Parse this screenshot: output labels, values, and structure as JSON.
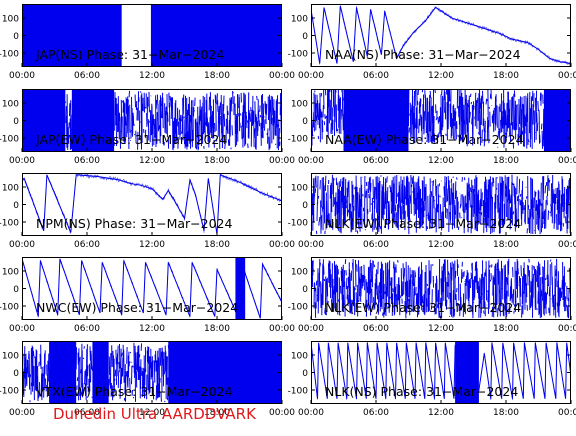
{
  "caption": "Dunedin Ultra AARDDVARK",
  "trace_color": "#0000ee",
  "caption_color": "#e0191b",
  "x_ticks": [
    "00:00",
    "06:00",
    "12:00",
    "18:00",
    "00:00"
  ],
  "y_ticks": [
    100,
    0,
    -100
  ],
  "chart_data": [
    {
      "type": "line",
      "title": "JAP(NS) Phase: 31−Mar−2024",
      "ylim": [
        -180,
        180
      ],
      "xlim": [
        0,
        24
      ],
      "style": "dense",
      "noise": 0,
      "gaps": [
        [
          9.2,
          11.9
        ]
      ],
      "sparse": [],
      "series": [
        {
          "x": [
            0,
            6,
            12,
            18,
            24
          ],
          "values": [
            0,
            0,
            0,
            0,
            0
          ]
        }
      ]
    },
    {
      "type": "line",
      "title": "NAA(NS) Phase: 31−Mar−2024",
      "ylim": [
        -180,
        180
      ],
      "xlim": [
        0,
        24
      ],
      "style": "wrap",
      "noise": 10,
      "gaps": [],
      "sparse": [],
      "series": [
        {
          "x": [
            0,
            0.8,
            1.2,
            2.4,
            2.7,
            3.9,
            4.2,
            5.2,
            5.5,
            6.5,
            6.8,
            7.9,
            8.5,
            9.5,
            10.5,
            11.5,
            13.0,
            13.5,
            14.0,
            14.5,
            15.0,
            16.0,
            17.5,
            18.5,
            20.0,
            21.0,
            22.0,
            23.0,
            24.0
          ],
          "values": [
            150,
            -160,
            160,
            -160,
            170,
            -150,
            160,
            -120,
            150,
            -110,
            140,
            -130,
            -60,
            20,
            80,
            160,
            100,
            90,
            80,
            70,
            60,
            40,
            10,
            -20,
            -40,
            -80,
            -130,
            -150,
            -160
          ]
        }
      ]
    },
    {
      "type": "line",
      "title": "JAP(EW) Phase: 31−Mar−2024",
      "ylim": [
        -180,
        180
      ],
      "xlim": [
        0,
        24
      ],
      "style": "dense",
      "noise": 0,
      "gaps": [],
      "sparse": [
        [
          4.0,
          4.6
        ],
        [
          8.5,
          24.0
        ]
      ],
      "series": [
        {
          "x": [
            0,
            12,
            24
          ],
          "values": [
            0,
            0,
            0
          ]
        }
      ]
    },
    {
      "type": "line",
      "title": "NAA(EW) Phase: 31−Mar−2024",
      "ylim": [
        -180,
        180
      ],
      "xlim": [
        0,
        24
      ],
      "style": "dense",
      "noise": 0,
      "gaps": [],
      "sparse": [
        [
          0,
          3.0
        ],
        [
          9.0,
          21.5
        ]
      ],
      "series": [
        {
          "x": [
            0,
            3.0,
            5.0,
            7.0,
            9.0,
            21.5,
            22.5,
            24.0
          ],
          "values": [
            0,
            100,
            60,
            80,
            40,
            0,
            110,
            140
          ]
        }
      ]
    },
    {
      "type": "line",
      "title": "NPM(NS) Phase: 31−Mar−2024",
      "ylim": [
        -180,
        180
      ],
      "xlim": [
        0,
        24
      ],
      "style": "wrap",
      "noise": 12,
      "gaps": [],
      "sparse": [],
      "series": [
        {
          "x": [
            0,
            0.2,
            2.0,
            2.3,
            4.5,
            5.0,
            7.0,
            8.0,
            9.0,
            10.0,
            11.0,
            12.0,
            12.5,
            13.0,
            13.5,
            14.0,
            15.0,
            15.5,
            16.0,
            16.8,
            17.2,
            18.0,
            18.3,
            20.0,
            22.0,
            24.0
          ],
          "values": [
            140,
            150,
            -150,
            170,
            -160,
            170,
            160,
            150,
            140,
            120,
            110,
            90,
            60,
            30,
            80,
            30,
            -80,
            140,
            60,
            -150,
            150,
            -170,
            170,
            130,
            70,
            20
          ]
        }
      ]
    },
    {
      "type": "line",
      "title": "NLK(EW) Phase: 31−Mar−2024",
      "ylim": [
        -180,
        180
      ],
      "xlim": [
        0,
        24
      ],
      "style": "dense",
      "noise": 0,
      "gaps": [],
      "sparse": [
        [
          0,
          24
        ]
      ],
      "series": [
        {
          "x": [
            0,
            12,
            24
          ],
          "values": [
            0,
            0,
            0
          ]
        }
      ]
    },
    {
      "type": "line",
      "title": "NWC(EW) Phase: 31−Mar−2024",
      "ylim": [
        -180,
        180
      ],
      "xlim": [
        0,
        24
      ],
      "style": "wrap",
      "noise": 8,
      "gaps": [],
      "sparse": [
        [
          19.7,
          20.6
        ]
      ],
      "series": [
        {
          "x": [
            0,
            1.5,
            1.7,
            3.3,
            3.5,
            5.3,
            5.5,
            7.2,
            7.4,
            9.2,
            9.4,
            11.2,
            11.4,
            13.3,
            13.5,
            15.5,
            15.7,
            17.8,
            18.0,
            20.0,
            20.2,
            22.0,
            22.2,
            24.0
          ],
          "values": [
            170,
            -160,
            160,
            -150,
            170,
            -150,
            160,
            -140,
            150,
            -150,
            160,
            -140,
            150,
            -150,
            150,
            -160,
            150,
            -160,
            110,
            -170,
            160,
            -170,
            140,
            -80
          ]
        }
      ]
    },
    {
      "type": "line",
      "title": "NLK(EW) Phase: 31−Mar−2024",
      "ylim": [
        -180,
        180
      ],
      "xlim": [
        0,
        24
      ],
      "style": "dense",
      "noise": 0,
      "gaps": [],
      "sparse": [
        [
          0,
          24
        ]
      ],
      "series": [
        {
          "x": [
            0,
            12,
            24
          ],
          "values": [
            0,
            0,
            0
          ]
        }
      ]
    },
    {
      "type": "line",
      "title": "VTX(EW) Phase: 31−Mar−2024",
      "ylim": [
        -180,
        180
      ],
      "xlim": [
        0,
        24
      ],
      "style": "dense",
      "noise": 0,
      "gaps": [],
      "sparse": [
        [
          0,
          2.5
        ],
        [
          5.0,
          6.5
        ],
        [
          8.0,
          13.5
        ]
      ],
      "series": [
        {
          "x": [
            0,
            12,
            24
          ],
          "values": [
            0,
            0,
            0
          ]
        }
      ]
    },
    {
      "type": "line",
      "title": "NLK(NS) Phase: 31−Mar−2024",
      "ylim": [
        -180,
        180
      ],
      "xlim": [
        0,
        24
      ],
      "style": "wrap",
      "noise": 8,
      "gaps": [],
      "sparse": [
        [
          13.3,
          15.5
        ]
      ],
      "series": [
        {
          "x": [
            0,
            0.6,
            0.7,
            1.5,
            1.6,
            2.4,
            2.5,
            3.3,
            3.4,
            4.2,
            4.3,
            5.1,
            5.2,
            6.0,
            6.1,
            6.9,
            7.0,
            7.8,
            7.9,
            8.7,
            8.8,
            9.6,
            9.7,
            10.5,
            10.6,
            11.4,
            11.5,
            12.3,
            12.4,
            13.2,
            13.3,
            15.5,
            16.0,
            16.6,
            16.7,
            17.6,
            17.7,
            18.6,
            18.7,
            19.6,
            19.7,
            20.6,
            20.7,
            21.6,
            21.7,
            22.6,
            22.7,
            23.5,
            23.6,
            24.0
          ],
          "values": [
            170,
            -150,
            170,
            -150,
            170,
            -150,
            170,
            -150,
            170,
            -150,
            170,
            -150,
            170,
            -150,
            170,
            -150,
            170,
            -150,
            170,
            -150,
            170,
            -150,
            170,
            -150,
            170,
            -150,
            170,
            -150,
            170,
            -150,
            150,
            -100,
            110,
            -150,
            170,
            -150,
            170,
            -150,
            170,
            -150,
            170,
            -150,
            170,
            -150,
            170,
            -150,
            170,
            -150,
            170,
            -20
          ]
        }
      ]
    }
  ]
}
